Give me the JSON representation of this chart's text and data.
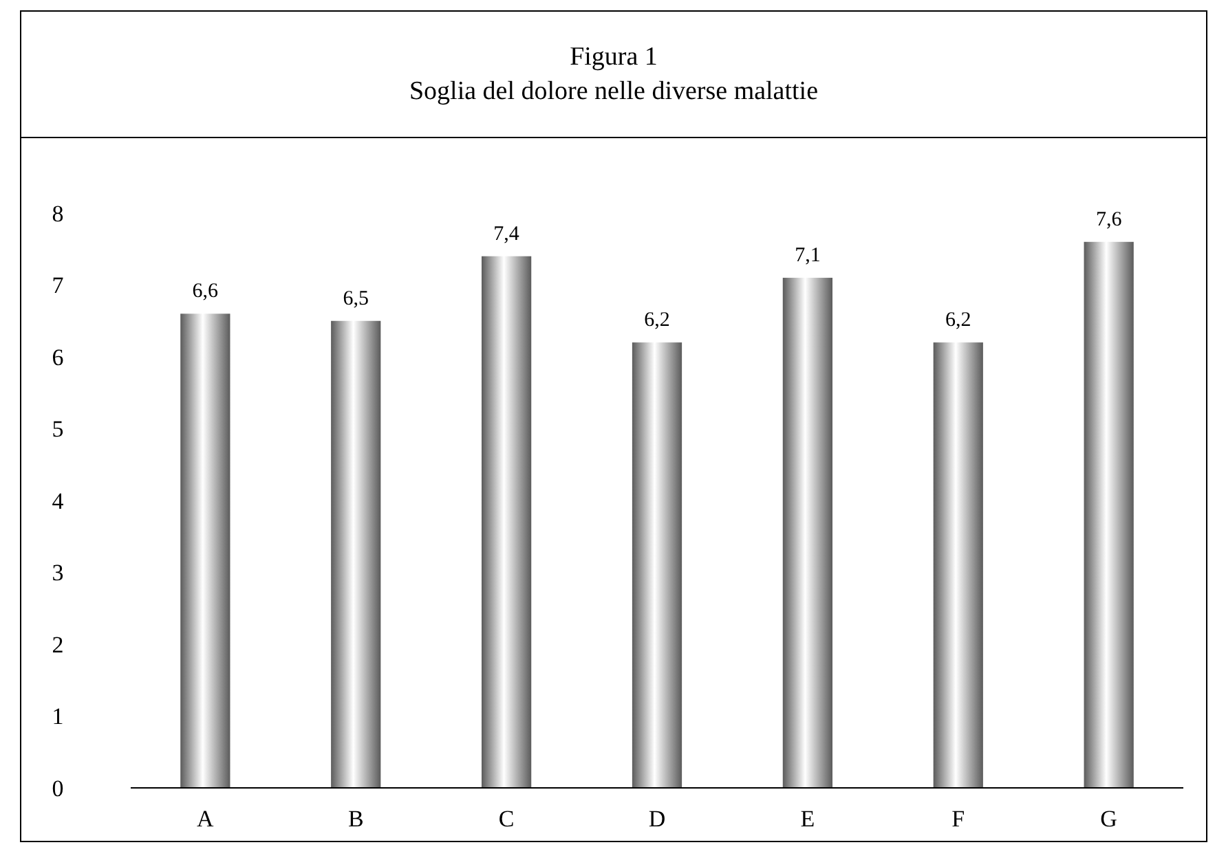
{
  "chart_data": {
    "type": "bar",
    "title": "Figura 1",
    "subtitle": "Soglia del dolore nelle diverse malattie",
    "categories": [
      "A",
      "B",
      "C",
      "D",
      "E",
      "F",
      "G"
    ],
    "values": [
      6.6,
      6.5,
      7.4,
      6.2,
      7.1,
      6.2,
      7.6
    ],
    "value_labels": [
      "6,6",
      "6,5",
      "7,4",
      "6,2",
      "7,1",
      "6,2",
      "7,6"
    ],
    "color": "#8c8c8c",
    "ylim": [
      0,
      8
    ],
    "yticks": [
      0,
      1,
      2,
      3,
      4,
      5,
      6,
      7,
      8
    ]
  }
}
